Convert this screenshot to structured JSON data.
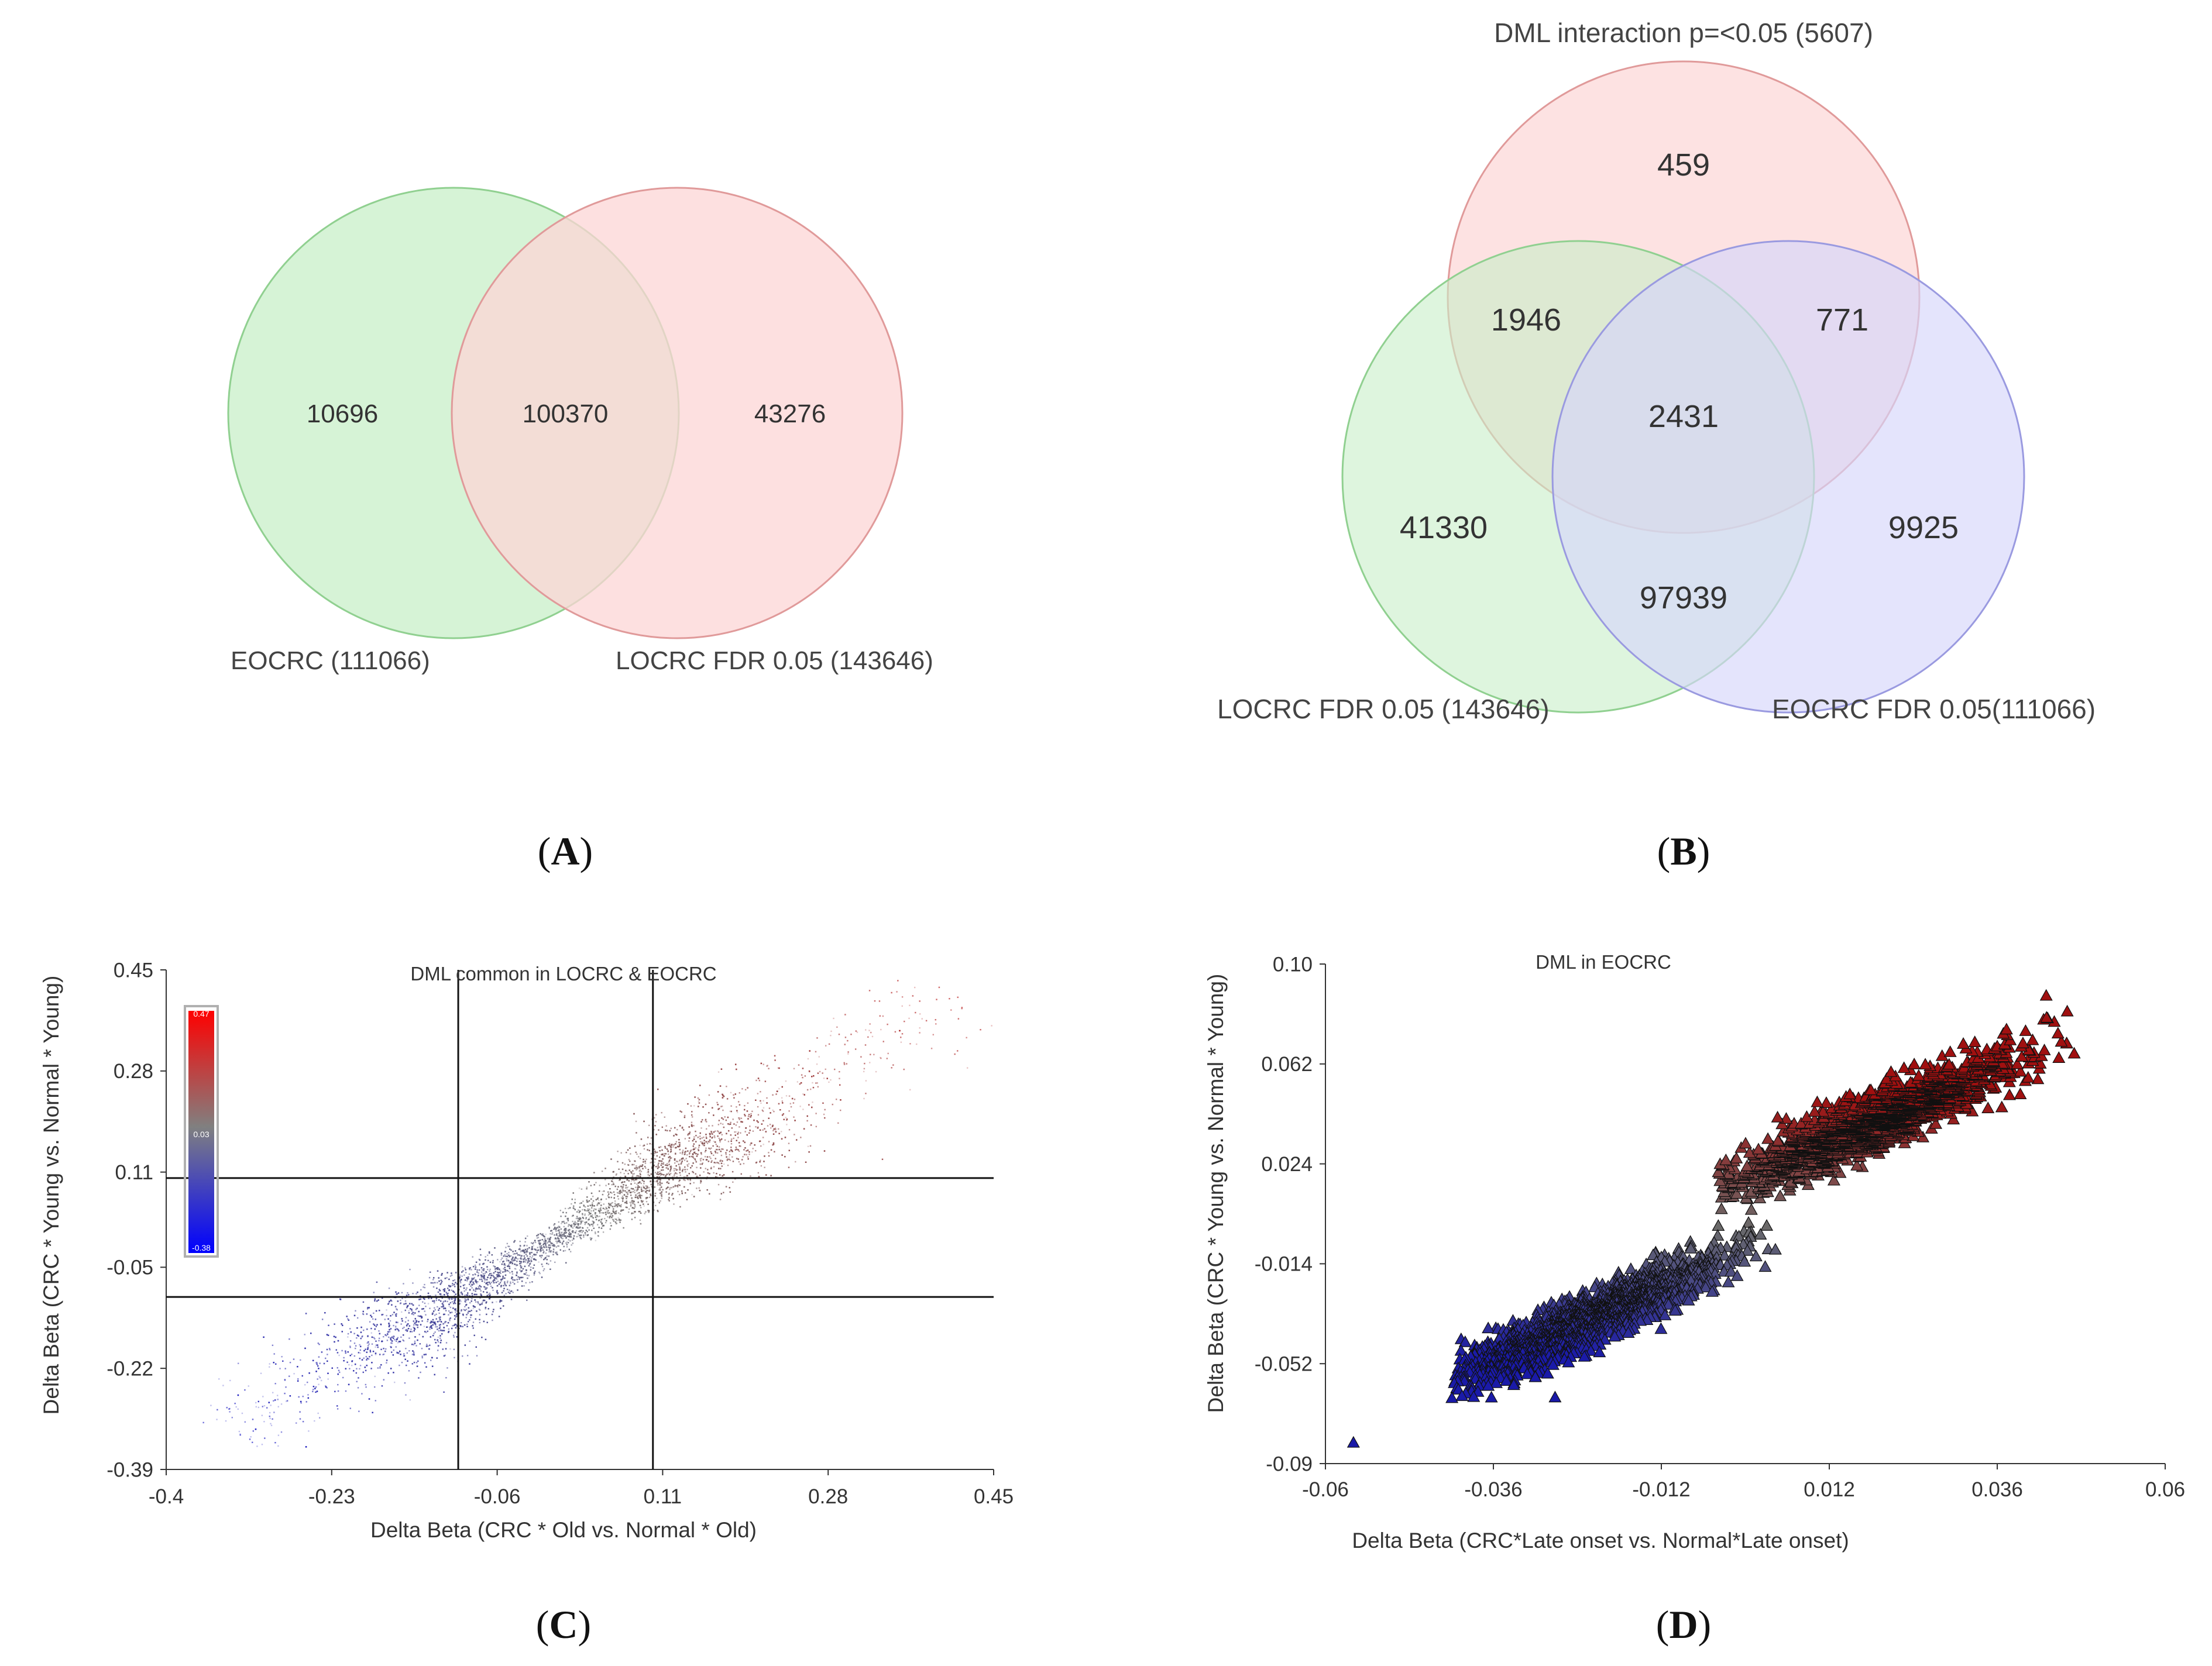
{
  "panels": {
    "A": {
      "caption": "(A)",
      "caption_parts": {
        "open": "(",
        "letter": "A",
        "close": ")"
      },
      "sets": [
        {
          "name": "EOCRC (111066)",
          "color": "#c8efc8",
          "stroke": "#90d090"
        },
        {
          "name": "LOCRC FDR 0.05 (143646)",
          "color": "#fcd6d6",
          "stroke": "#e09a9a"
        }
      ],
      "regions": {
        "left_only": "10696",
        "both": "100370",
        "right_only": "43276"
      }
    },
    "B": {
      "caption": "(B)",
      "caption_parts": {
        "open": "(",
        "letter": "B",
        "close": ")"
      },
      "sets": [
        {
          "name": "DML interaction p=<0.05 (5607)",
          "color": "#fcd6d6",
          "stroke": "#e09a9a"
        },
        {
          "name": "LOCRC FDR 0.05 (143646)",
          "color": "#c8efc8",
          "stroke": "#90d090"
        },
        {
          "name": "EOCRC FDR 0.05(111066)",
          "color": "#d6d6fa",
          "stroke": "#9a9ae0"
        }
      ],
      "regions": {
        "top_only": "459",
        "top_left": "1946",
        "top_right": "771",
        "all": "2431",
        "left_only": "41330",
        "left_right": "97939",
        "right_only": "9925"
      }
    },
    "C": {
      "caption": "(C)",
      "caption_parts": {
        "open": "(",
        "letter": "C",
        "close": ")"
      },
      "colorbar": {
        "max": "0.47",
        "mid": "0.03",
        "min": "-0.38",
        "colors": [
          "#ff0000",
          "#808080",
          "#0000ff"
        ]
      }
    },
    "D": {
      "caption": "(D)",
      "caption_parts": {
        "open": "(",
        "letter": "D",
        "close": ")"
      }
    }
  },
  "chart_data": [
    {
      "panel": "C",
      "type": "scatter",
      "title": "DML common in LOCRC & EOCRC",
      "xlabel": "Delta Beta (CRC * Old vs. Normal * Old)",
      "ylabel": "Delta Beta (CRC * Young vs. Normal * Young)",
      "xlim": [
        -0.4,
        0.45
      ],
      "ylim": [
        -0.39,
        0.45
      ],
      "xticks": [
        "-0.4",
        "-0.23",
        "-0.06",
        "0.11",
        "0.28",
        "0.45"
      ],
      "yticks": [
        "0.45",
        "0.28",
        "0.11",
        "-0.05",
        "-0.22",
        "-0.39"
      ],
      "reference_lines": {
        "x": [
          -0.1,
          0.1
        ],
        "y": [
          -0.1,
          0.1
        ]
      },
      "point_cloud": {
        "centers": [
          -0.1,
          0.1
        ],
        "spread_along": 0.07,
        "spread_across": 0.025,
        "tail_low": -0.33,
        "tail_high": 0.41,
        "count": 100370
      },
      "color_scale": {
        "low": "#0000c0",
        "mid": "#707070",
        "high": "#b00000"
      }
    },
    {
      "panel": "D",
      "type": "scatter",
      "title": "DML in EOCRC",
      "xlabel": "Delta Beta (CRC*Late onset vs. Normal*Late onset)",
      "ylabel": "Delta Beta (CRC * Young vs. Normal * Young)",
      "xlim": [
        -0.06,
        0.06
      ],
      "ylim": [
        -0.09,
        0.1
      ],
      "xticks": [
        "-0.06",
        "-0.036",
        "-0.012",
        "0.012",
        "0.036",
        "0.06"
      ],
      "yticks": [
        "0.10",
        "0.062",
        "0.024",
        "-0.014",
        "-0.052",
        "-0.09"
      ],
      "point_cloud": {
        "lower": {
          "center": [
            -0.022,
            -0.035
          ],
          "spread": [
            0.009,
            0.011
          ],
          "x_range": [
            -0.042,
            0.006
          ]
        },
        "upper": {
          "center": [
            0.018,
            0.04
          ],
          "spread": [
            0.01,
            0.012
          ],
          "x_range": [
            -0.004,
            0.046
          ]
        },
        "outliers": [
          [
            -0.056,
            -0.082
          ],
          [
            0.043,
            0.088
          ],
          [
            0.046,
            0.082
          ],
          [
            0.047,
            0.066
          ]
        ],
        "count": 10696
      },
      "color_scale": {
        "low": "#1a1aa8",
        "mid": "#6a6a6a",
        "high": "#a01010"
      }
    }
  ]
}
